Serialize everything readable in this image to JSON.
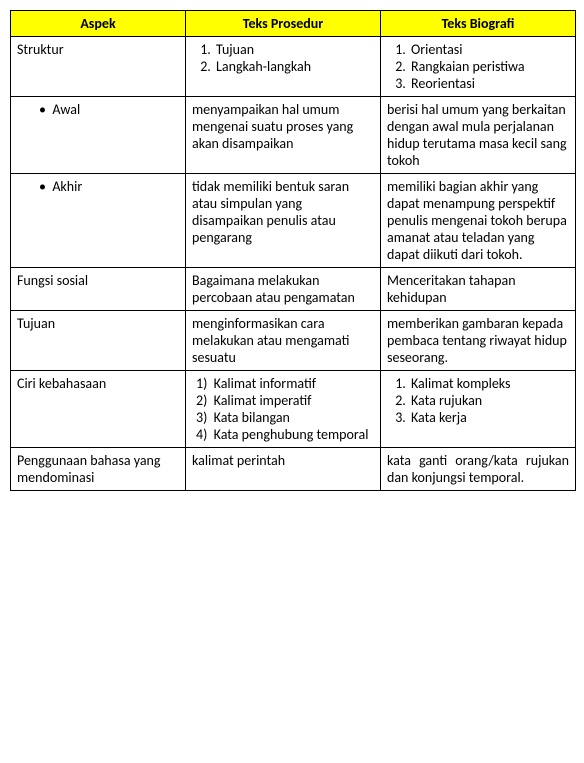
{
  "headers": {
    "col1": "Aspek",
    "col2": "Teks Prosedur",
    "col3": "Teks Biografi"
  },
  "rows": {
    "struktur": {
      "label": "Struktur",
      "prosedur": [
        "Tujuan",
        "Langkah-langkah"
      ],
      "biografi": [
        "Orientasi",
        "Rangkaian peristiwa",
        "Reorientasi"
      ]
    },
    "awal": {
      "label": "Awal",
      "prosedur": "menyampaikan hal umum mengenai suatu proses yang akan disampaikan",
      "biografi": "berisi hal umum yang berkaitan dengan awal mula perjalanan hidup terutama masa kecil sang tokoh"
    },
    "akhir": {
      "label": "Akhir",
      "prosedur": "tidak memiliki bentuk saran atau simpulan yang disampaikan penulis atau pengarang",
      "biografi": "memiliki bagian akhir yang dapat menampung perspektif penulis mengenai tokoh berupa amanat atau teladan yang dapat diikuti dari tokoh."
    },
    "fungsi": {
      "label": "Fungsi sosial",
      "prosedur": "Bagaimana melakukan percobaan atau pengamatan",
      "biografi": "Menceritakan tahapan kehidupan"
    },
    "tujuan": {
      "label": "Tujuan",
      "prosedur": "menginformasikan cara melakukan atau mengamati sesuatu",
      "biografi": "memberikan gambaran kepada pembaca tentang riwayat hidup seseorang."
    },
    "ciri": {
      "label": "Ciri kebahasaan",
      "prosedur": [
        "Kalimat informatif",
        "Kalimat imperatif",
        "Kata bilangan",
        "Kata penghubung temporal"
      ],
      "biografi": [
        "Kalimat kompleks",
        "Kata rujukan",
        "Kata kerja"
      ]
    },
    "penggunaan": {
      "label": "Penggunaan bahasa yang mendominasi",
      "prosedur": "kalimat perintah",
      "biografi": "kata ganti orang/kata rujukan dan konjungsi temporal."
    }
  }
}
